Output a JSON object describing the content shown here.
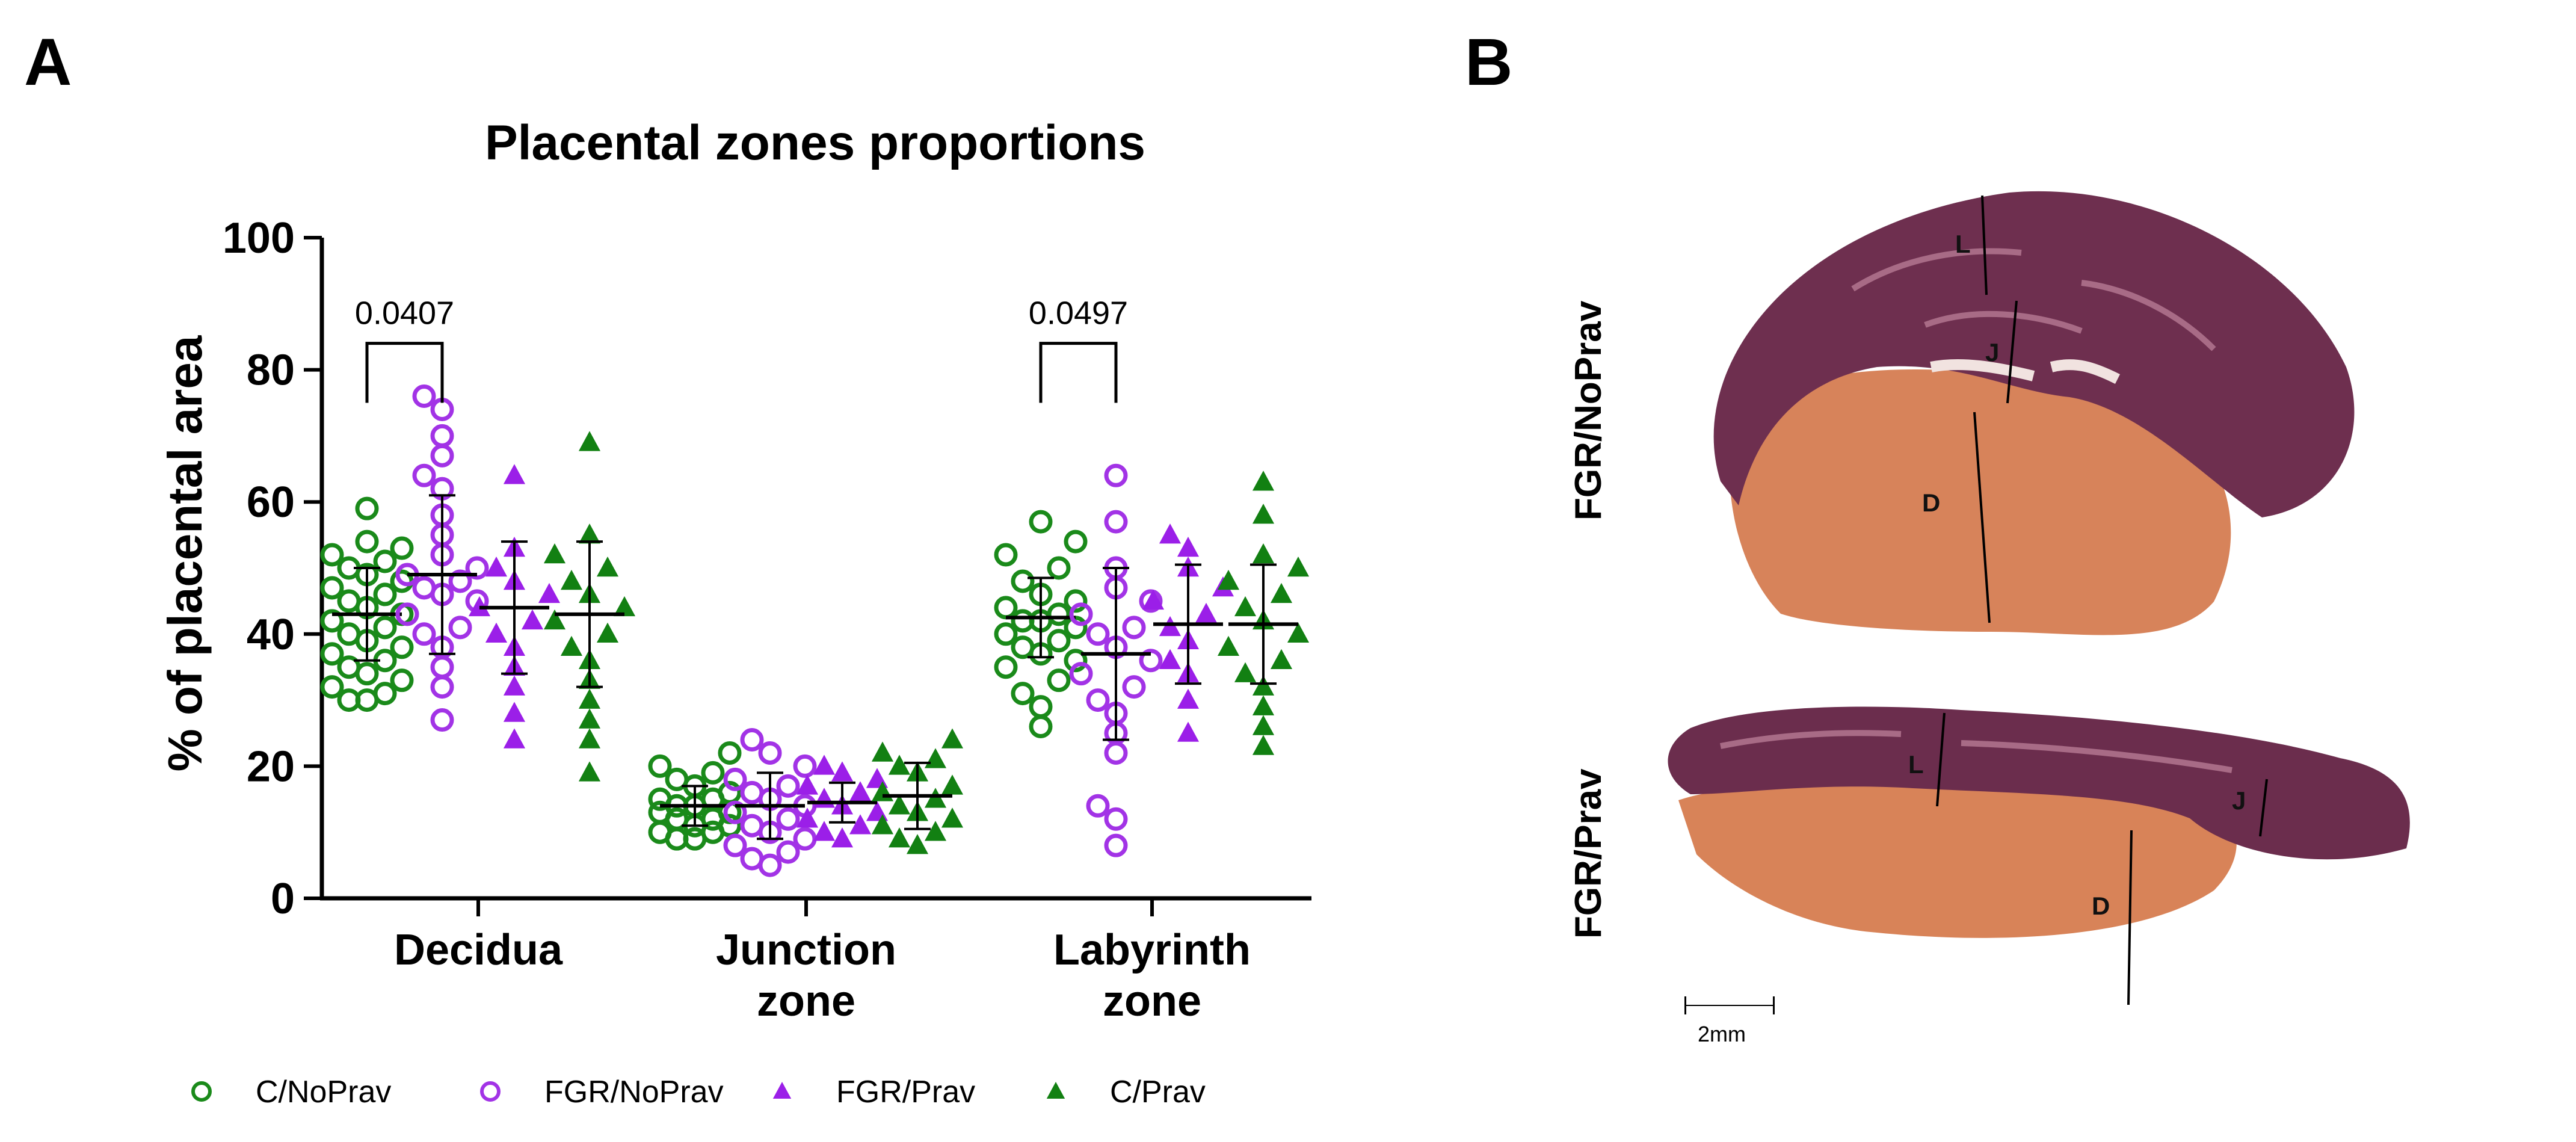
{
  "panels": {
    "a_label": "A",
    "b_label": "B"
  },
  "chart_data": {
    "type": "scatter",
    "title": "Placental zones proportions",
    "xlabel": "",
    "ylabel": "% of placental area",
    "ylim": [
      0,
      100
    ],
    "yticks": [
      0,
      20,
      40,
      60,
      80,
      100
    ],
    "grid": false,
    "legend_position": "bottom",
    "categories": [
      {
        "line1": "Decidua",
        "line2": ""
      },
      {
        "line1": "Junction",
        "line2": "zone"
      },
      {
        "line1": "Labyrinth",
        "line2": "zone"
      }
    ],
    "series": [
      {
        "name": "C/NoPrav",
        "color": "#1a8a1a",
        "marker": "circle-open",
        "mean": [
          43,
          14,
          42.5
        ],
        "sd": [
          7,
          3,
          6
        ],
        "values": [
          [
            59,
            54,
            53,
            52,
            51,
            50,
            49,
            48,
            47,
            46,
            45,
            44,
            43,
            42,
            41,
            40,
            39,
            38,
            37,
            36,
            35,
            34,
            33,
            32,
            31,
            30,
            30
          ],
          [
            22,
            20,
            19,
            18,
            17,
            16,
            15,
            15,
            14,
            14,
            13,
            13,
            12,
            12,
            11,
            11,
            10,
            10,
            9,
            9
          ],
          [
            57,
            54,
            52,
            50,
            48,
            46,
            45,
            44,
            43,
            42,
            42,
            41,
            40,
            39,
            38,
            37,
            36,
            35,
            33,
            31,
            29,
            26
          ]
        ]
      },
      {
        "name": "FGR/NoPrav",
        "color": "#a233e6",
        "marker": "circle-open",
        "mean": [
          49,
          14,
          37
        ],
        "sd": [
          12,
          5,
          13
        ],
        "values": [
          [
            76,
            74,
            70,
            67,
            64,
            62,
            58,
            55,
            52,
            50,
            49,
            48,
            47,
            46,
            45,
            43,
            41,
            40,
            38,
            35,
            32,
            27
          ],
          [
            24,
            22,
            20,
            18,
            17,
            16,
            15,
            14,
            13,
            12,
            11,
            10,
            9,
            8,
            7,
            6,
            5
          ],
          [
            64,
            57,
            50,
            47,
            45,
            43,
            41,
            40,
            38,
            36,
            34,
            32,
            30,
            28,
            25,
            22,
            14,
            12,
            8
          ]
        ]
      },
      {
        "name": "FGR/Prav",
        "color": "#9b1fe8",
        "marker": "triangle-filled",
        "mean": [
          44,
          14.5,
          41.5
        ],
        "sd": [
          10,
          3,
          9
        ],
        "values": [
          [
            64,
            53,
            50,
            48,
            46,
            44,
            42,
            40,
            38,
            35,
            32,
            28,
            24
          ],
          [
            20,
            19,
            18,
            17,
            16,
            15,
            14,
            13,
            12,
            11,
            10,
            9
          ],
          [
            55,
            53,
            50,
            47,
            45,
            43,
            41,
            39,
            36,
            34,
            30,
            25
          ]
        ]
      },
      {
        "name": "C/Prav",
        "color": "#128012",
        "marker": "triangle-filled",
        "mean": [
          43,
          15.5,
          41.5
        ],
        "sd": [
          11,
          5,
          9
        ],
        "values": [
          [
            69,
            55,
            52,
            50,
            48,
            46,
            44,
            42,
            40,
            38,
            36,
            33,
            30,
            27,
            24,
            19
          ],
          [
            24,
            22,
            21,
            20,
            19,
            17,
            16,
            15,
            14,
            13,
            12,
            11,
            10,
            9,
            8
          ],
          [
            63,
            58,
            52,
            50,
            48,
            46,
            44,
            42,
            40,
            38,
            36,
            34,
            32,
            29,
            26,
            23
          ]
        ]
      }
    ],
    "annotations": [
      {
        "text": "0.0407",
        "category_index": 0,
        "from_series": 0,
        "to_series": 1,
        "y": 84
      },
      {
        "text": "0.0497",
        "category_index": 2,
        "from_series": 0,
        "to_series": 1,
        "y": 84
      }
    ]
  },
  "micrograph": {
    "row_labels": [
      "FGR/NoPrav",
      "FGR/Prav"
    ],
    "zone_letters": {
      "labyrinth": "L",
      "junction": "J",
      "decidua": "D"
    },
    "scale_label": "2mm",
    "colors": {
      "labyrinth": "#6e2f4f",
      "decidua": "#d9845a",
      "background": "#ffffff"
    }
  }
}
